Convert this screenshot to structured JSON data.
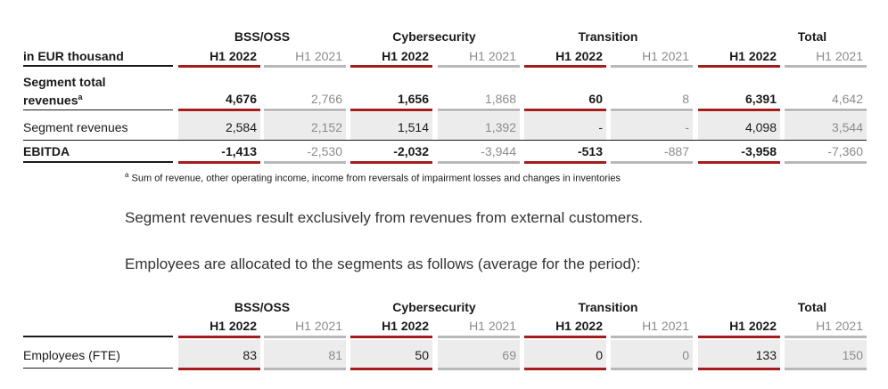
{
  "table1": {
    "unit_label": "in EUR thousand",
    "segments": [
      "BSS/OSS",
      "Cybersecurity",
      "Transition",
      "Total"
    ],
    "periods": [
      "H1 2022",
      "H1 2021"
    ],
    "rows": [
      {
        "label_line1": "Segment total",
        "label_line2": "revenues",
        "label_sup": "a",
        "values": [
          "4,676",
          "2,766",
          "1,656",
          "1,868",
          "60",
          "8",
          "6,391",
          "4,642"
        ]
      },
      {
        "label": "Segment revenues",
        "values": [
          "2,584",
          "2,152",
          "1,514",
          "1,392",
          "-",
          "-",
          "4,098",
          "3,544"
        ]
      },
      {
        "label": "EBITDA",
        "values": [
          "-1,413",
          "-2,530",
          "-2,032",
          "-3,944",
          "-513",
          "-887",
          "-3,958",
          "-7,360"
        ]
      }
    ],
    "footnote_marker": "a",
    "footnote": "Sum of revenue, other operating income, income from reversals of impairment losses and changes in inventories"
  },
  "paragraph1": "Segment revenues result exclusively from revenues from external customers.",
  "paragraph2": "Employees are allocated to the segments as follows (average for the period):",
  "table2": {
    "segments": [
      "BSS/OSS",
      "Cybersecurity",
      "Transition",
      "Total"
    ],
    "periods": [
      "H1 2022",
      "H1 2021"
    ],
    "rows": [
      {
        "label": "Employees (FTE)",
        "values": [
          "83",
          "81",
          "50",
          "69",
          "0",
          "0",
          "133",
          "150"
        ]
      }
    ]
  },
  "colors": {
    "accent_red": "#a51c1c",
    "muted_grey": "#b8b8b8",
    "shade": "#ececec"
  }
}
